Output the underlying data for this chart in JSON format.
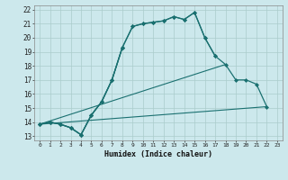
{
  "xlabel": "Humidex (Indice chaleur)",
  "bg_color": "#cce8ec",
  "grid_color": "#aacccc",
  "line_color": "#1a7070",
  "xlim": [
    -0.5,
    23.5
  ],
  "ylim": [
    12.7,
    22.3
  ],
  "xticks": [
    0,
    1,
    2,
    3,
    4,
    5,
    6,
    7,
    8,
    9,
    10,
    11,
    12,
    13,
    14,
    15,
    16,
    17,
    18,
    19,
    20,
    21,
    22,
    23
  ],
  "yticks": [
    13,
    14,
    15,
    16,
    17,
    18,
    19,
    20,
    21,
    22
  ],
  "lines": [
    {
      "x": [
        0,
        1,
        2,
        3,
        4,
        5,
        6,
        7,
        8
      ],
      "y": [
        13.85,
        14.0,
        13.85,
        13.6,
        13.1,
        14.5,
        15.45,
        17.0,
        19.3
      ],
      "marker": "D",
      "markersize": 2.0,
      "linewidth": 0.9,
      "dashed": false
    },
    {
      "x": [
        0,
        1,
        2,
        3,
        4,
        5,
        6,
        7,
        8,
        9,
        10,
        11,
        12,
        13,
        14,
        15,
        16,
        17
      ],
      "y": [
        13.85,
        14.0,
        13.85,
        13.6,
        13.1,
        14.5,
        15.45,
        17.0,
        19.3,
        20.8,
        21.0,
        21.1,
        21.2,
        21.5,
        21.3,
        21.8,
        20.0,
        18.7
      ],
      "marker": "D",
      "markersize": 2.0,
      "linewidth": 0.9,
      "dashed": false
    },
    {
      "x": [
        0,
        1,
        2,
        3,
        4,
        5,
        6,
        7,
        8,
        9,
        10,
        11,
        12,
        13,
        14,
        15,
        16,
        17,
        18,
        19,
        20,
        21,
        22
      ],
      "y": [
        13.85,
        14.0,
        13.85,
        13.6,
        13.1,
        14.5,
        15.45,
        17.0,
        19.3,
        20.8,
        21.0,
        21.1,
        21.2,
        21.5,
        21.3,
        21.8,
        20.0,
        18.7,
        18.1,
        17.0,
        17.0,
        16.7,
        15.1
      ],
      "marker": "D",
      "markersize": 2.0,
      "linewidth": 0.9,
      "dashed": false
    },
    {
      "x": [
        0,
        22
      ],
      "y": [
        13.85,
        15.1
      ],
      "marker": null,
      "markersize": 0,
      "linewidth": 0.8,
      "dashed": false
    },
    {
      "x": [
        0,
        18
      ],
      "y": [
        13.85,
        18.1
      ],
      "marker": null,
      "markersize": 0,
      "linewidth": 0.8,
      "dashed": false
    }
  ]
}
